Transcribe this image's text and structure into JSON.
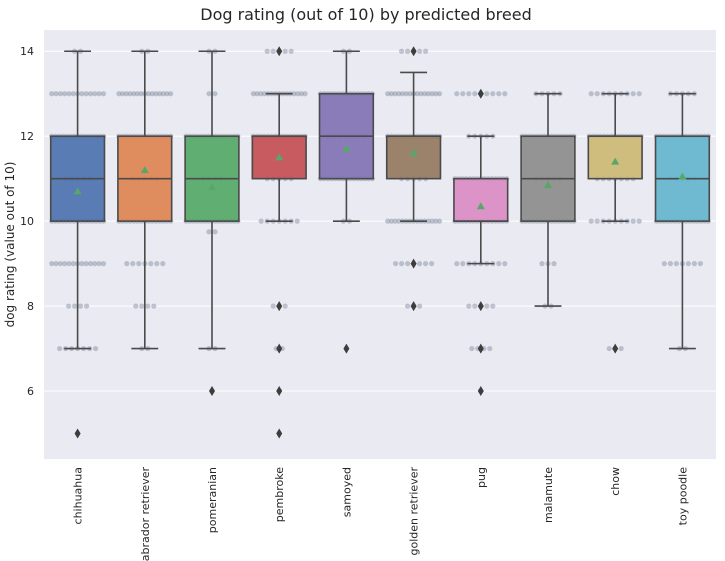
{
  "chart_data": {
    "type": "box",
    "title": "Dog rating (out of 10) by predicted breed",
    "xlabel": "",
    "ylabel": "dog rating (value out of 10)",
    "ylim": [
      4.4,
      14.5
    ],
    "yticks": [
      6,
      8,
      10,
      12,
      14
    ],
    "grid": true,
    "background": "#EAEAF2",
    "categories": [
      "chihuahua",
      "labrador retriever",
      "pomeranian",
      "pembroke",
      "samoyed",
      "golden retriever",
      "pug",
      "malamute",
      "chow",
      "toy poodle"
    ],
    "colors": [
      "#4C72B0",
      "#DD8452",
      "#55A868",
      "#C44E52",
      "#8172B3",
      "#937860",
      "#DA8BC3",
      "#8C8C8C",
      "#CCB974",
      "#64B5CD"
    ],
    "boxes": [
      {
        "q1": 10,
        "median": 11,
        "q3": 12,
        "whisker_low": 7,
        "whisker_high": 14,
        "mean": 10.7,
        "outliers": [
          5
        ]
      },
      {
        "q1": 10,
        "median": 11,
        "q3": 12,
        "whisker_low": 7,
        "whisker_high": 14,
        "mean": 11.2,
        "outliers": []
      },
      {
        "q1": 10,
        "median": 11,
        "q3": 12,
        "whisker_low": 7,
        "whisker_high": 14,
        "mean": 10.8,
        "outliers": [
          6
        ]
      },
      {
        "q1": 11,
        "median": 12,
        "q3": 12,
        "whisker_low": 10,
        "whisker_high": 13,
        "mean": 11.5,
        "outliers": [
          14,
          8,
          7,
          6,
          5
        ]
      },
      {
        "q1": 11,
        "median": 12,
        "q3": 13,
        "whisker_low": 10,
        "whisker_high": 14,
        "mean": 11.7,
        "outliers": [
          7
        ]
      },
      {
        "q1": 11,
        "median": 12,
        "q3": 12,
        "whisker_low": 10,
        "whisker_high": 13.5,
        "mean": 11.6,
        "outliers": [
          14,
          9,
          8
        ]
      },
      {
        "q1": 10,
        "median": 10,
        "q3": 11,
        "whisker_low": 9,
        "whisker_high": 12,
        "mean": 10.35,
        "outliers": [
          13,
          8,
          7,
          6
        ]
      },
      {
        "q1": 10,
        "median": 11,
        "q3": 12,
        "whisker_low": 8,
        "whisker_high": 13,
        "mean": 10.85,
        "outliers": []
      },
      {
        "q1": 11,
        "median": 12,
        "q3": 12,
        "whisker_low": 10,
        "whisker_high": 13,
        "mean": 11.4,
        "outliers": [
          7
        ]
      },
      {
        "q1": 10,
        "median": 11,
        "q3": 12,
        "whisker_low": 7,
        "whisker_high": 13,
        "mean": 11.05,
        "outliers": []
      }
    ],
    "swarm": [
      {
        "values": [
          [
            14,
            1
          ],
          [
            13,
            12
          ],
          [
            12,
            14
          ],
          [
            11,
            4
          ],
          [
            10,
            14
          ],
          [
            9,
            12
          ],
          [
            8,
            3
          ],
          [
            7,
            6
          ],
          [
            5,
            0
          ]
        ]
      },
      {
        "values": [
          [
            14,
            1
          ],
          [
            13,
            14
          ],
          [
            12,
            14
          ],
          [
            11,
            4
          ],
          [
            10,
            14
          ],
          [
            9,
            6
          ],
          [
            8,
            3
          ],
          [
            7,
            1
          ]
        ]
      },
      {
        "values": [
          [
            14,
            1
          ],
          [
            13,
            1
          ],
          [
            12,
            14
          ],
          [
            11,
            3
          ],
          [
            10,
            14
          ],
          [
            9.75,
            1
          ],
          [
            7,
            1
          ],
          [
            6,
            0
          ]
        ]
      },
      {
        "values": [
          [
            14,
            4
          ],
          [
            13,
            14
          ],
          [
            12,
            14
          ],
          [
            11,
            4
          ],
          [
            10,
            6
          ],
          [
            8,
            2
          ],
          [
            7,
            1
          ]
        ]
      },
      {
        "values": [
          [
            14,
            1
          ],
          [
            13,
            14
          ],
          [
            12,
            6
          ],
          [
            11,
            14
          ],
          [
            10,
            1
          ],
          [
            7,
            0
          ]
        ]
      },
      {
        "values": [
          [
            14,
            4
          ],
          [
            13,
            14
          ],
          [
            12,
            14
          ],
          [
            11,
            4
          ],
          [
            10,
            14
          ],
          [
            9,
            6
          ],
          [
            8,
            2
          ]
        ]
      },
      {
        "values": [
          [
            13,
            8
          ],
          [
            12,
            4
          ],
          [
            11,
            14
          ],
          [
            10,
            14
          ],
          [
            9,
            8
          ],
          [
            8,
            4
          ],
          [
            7,
            3
          ],
          [
            6,
            0
          ]
        ]
      },
      {
        "values": [
          [
            13,
            4
          ],
          [
            12,
            14
          ],
          [
            11,
            4
          ],
          [
            10,
            14
          ],
          [
            9,
            2
          ],
          [
            8,
            1
          ]
        ]
      },
      {
        "values": [
          [
            13,
            8
          ],
          [
            12,
            14
          ],
          [
            11,
            6
          ],
          [
            10,
            8
          ],
          [
            7,
            2
          ]
        ]
      },
      {
        "values": [
          [
            13,
            4
          ],
          [
            12,
            14
          ],
          [
            11,
            4
          ],
          [
            10,
            14
          ],
          [
            9,
            6
          ],
          [
            7,
            1
          ]
        ]
      }
    ]
  }
}
